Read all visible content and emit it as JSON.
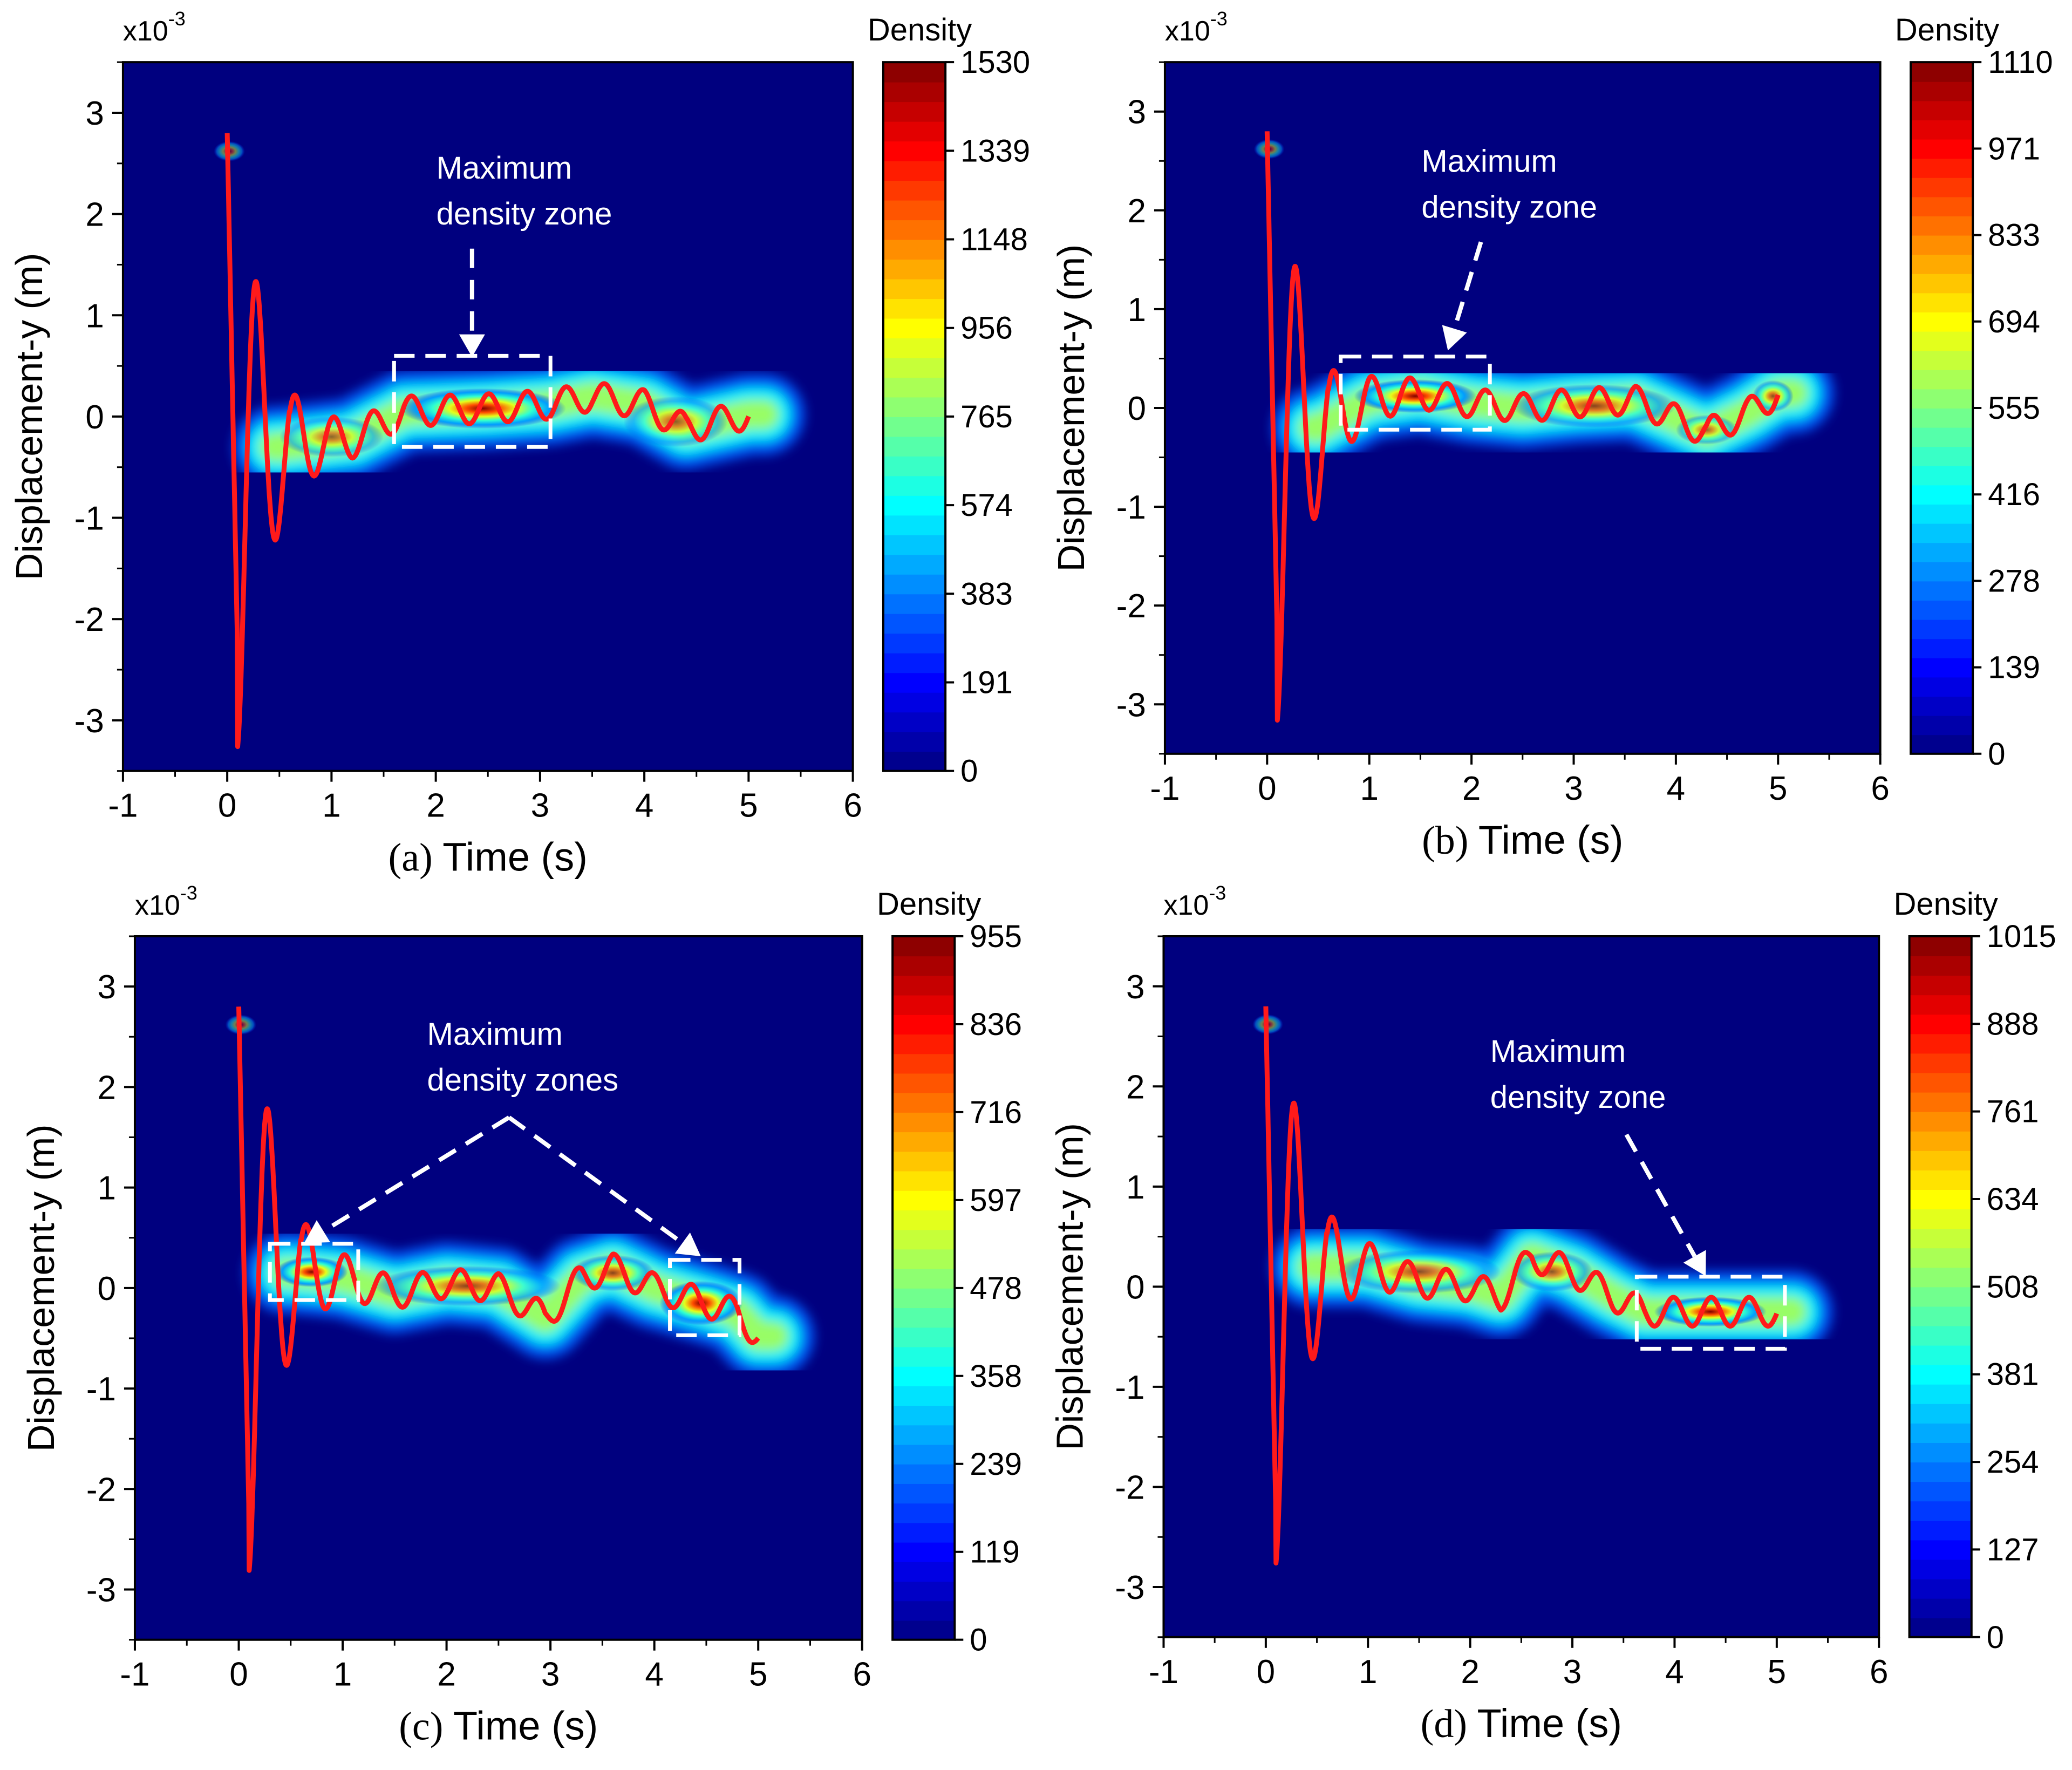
{
  "chart_data": [
    {
      "type": "heatmap",
      "panel_label": "(a)",
      "xlabel": "Time (s)",
      "ylabel": "Displacement-y (m)",
      "y_multiplier": "x10",
      "y_multiplier_exponent": "-3",
      "xlim": [
        -1,
        6
      ],
      "ylim": [
        -3.5,
        3.5
      ],
      "xticks": [
        "-1",
        "0",
        "1",
        "2",
        "3",
        "4",
        "5",
        "6"
      ],
      "yticks": [
        "-3",
        "-2",
        "-1",
        "0",
        "1",
        "2",
        "3"
      ],
      "colorbar": {
        "title": "Density",
        "min": 0,
        "max": 1530,
        "ticks": [
          "0",
          "191",
          "383",
          "574",
          "765",
          "956",
          "1148",
          "1339",
          "1530"
        ]
      },
      "annotation": [
        "Maximum",
        "density zone"
      ],
      "zones": [
        {
          "t_start": 1.6,
          "t_end": 3.1,
          "y_low": -0.3,
          "y_high": 0.6
        }
      ],
      "series": [
        {
          "name": "displacement",
          "color": "#ff1a1a",
          "drift": [
            [
              0.5,
              -0.3
            ],
            [
              1.2,
              -0.22
            ],
            [
              1.7,
              0.05
            ],
            [
              2.5,
              0.08
            ],
            [
              3.1,
              0.12
            ],
            [
              3.5,
              0.2
            ],
            [
              4.0,
              0.12
            ],
            [
              4.4,
              -0.12
            ],
            [
              4.7,
              -0.05
            ],
            [
              5.0,
              0.02
            ]
          ],
          "end_t": 5.0
        }
      ],
      "density_blobs": [
        {
          "t": 2.45,
          "y": 0.08,
          "st": 0.8,
          "sy": 0.2,
          "w": 1.0
        },
        {
          "t": 4.3,
          "y": -0.05,
          "st": 0.5,
          "sy": 0.25,
          "w": 0.4
        },
        {
          "t": 1.0,
          "y": -0.2,
          "st": 0.5,
          "sy": 0.2,
          "w": 0.35
        },
        {
          "t": 0.02,
          "y": 2.62,
          "st": 0.15,
          "sy": 0.1,
          "w": 0.22
        }
      ]
    },
    {
      "type": "heatmap",
      "panel_label": "(b)",
      "xlabel": "Time (s)",
      "ylabel": "Displacement-y (m)",
      "y_multiplier": "x10",
      "y_multiplier_exponent": "-3",
      "xlim": [
        -1,
        6
      ],
      "ylim": [
        -3.5,
        3.5
      ],
      "xticks": [
        "-1",
        "0",
        "1",
        "2",
        "3",
        "4",
        "5",
        "6"
      ],
      "yticks": [
        "-3",
        "-2",
        "-1",
        "0",
        "1",
        "2",
        "3"
      ],
      "colorbar": {
        "title": "Density",
        "min": 0,
        "max": 1110,
        "ticks": [
          "0",
          "139",
          "278",
          "416",
          "555",
          "694",
          "833",
          "971",
          "1110"
        ]
      },
      "annotation": [
        "Maximum",
        "density zone"
      ],
      "zones": [
        {
          "t_start": 0.72,
          "t_end": 2.18,
          "y_low": -0.22,
          "y_high": 0.52
        }
      ],
      "series": [
        {
          "name": "displacement",
          "color": "#ff1a1a",
          "drift": [
            [
              0.5,
              -0.2
            ],
            [
              1.0,
              0.08
            ],
            [
              1.5,
              0.15
            ],
            [
              2.0,
              0.05
            ],
            [
              2.5,
              0.0
            ],
            [
              3.0,
              0.05
            ],
            [
              3.6,
              0.08
            ],
            [
              4.3,
              -0.25
            ],
            [
              4.7,
              -0.05
            ],
            [
              5.0,
              0.15
            ]
          ],
          "end_t": 5.0
        }
      ],
      "density_blobs": [
        {
          "t": 1.45,
          "y": 0.12,
          "st": 0.6,
          "sy": 0.17,
          "w": 1.0
        },
        {
          "t": 3.2,
          "y": 0.02,
          "st": 0.8,
          "sy": 0.22,
          "w": 0.55
        },
        {
          "t": 4.95,
          "y": 0.12,
          "st": 0.2,
          "sy": 0.16,
          "w": 0.5
        },
        {
          "t": 4.3,
          "y": -0.22,
          "st": 0.3,
          "sy": 0.15,
          "w": 0.35
        },
        {
          "t": 0.02,
          "y": 2.62,
          "st": 0.15,
          "sy": 0.1,
          "w": 0.22
        }
      ]
    },
    {
      "type": "heatmap",
      "panel_label": "(c)",
      "xlabel": "Time (s)",
      "ylabel": "Displacement-y (m)",
      "y_multiplier": "x10",
      "y_multiplier_exponent": "-3",
      "xlim": [
        -1,
        6
      ],
      "ylim": [
        -3.5,
        3.5
      ],
      "xticks": [
        "-1",
        "0",
        "1",
        "2",
        "3",
        "4",
        "5",
        "6"
      ],
      "yticks": [
        "-3",
        "-2",
        "-1",
        "0",
        "1",
        "2",
        "3"
      ],
      "colorbar": {
        "title": "Density",
        "min": 0,
        "max": 955,
        "ticks": [
          "0",
          "119",
          "239",
          "358",
          "478",
          "597",
          "716",
          "836",
          "955"
        ]
      },
      "annotation": [
        "Maximum",
        "density zones"
      ],
      "zones": [
        {
          "t_start": 0.3,
          "t_end": 1.15,
          "y_low": -0.12,
          "y_high": 0.44
        },
        {
          "t_start": 4.15,
          "t_end": 4.82,
          "y_low": -0.47,
          "y_high": 0.28
        }
      ],
      "series": [
        {
          "name": "displacement",
          "color": "#ff1a1a",
          "drift": [
            [
              0.5,
              0.15
            ],
            [
              1.0,
              0.1
            ],
            [
              1.5,
              -0.05
            ],
            [
              2.0,
              0.05
            ],
            [
              2.5,
              0.0
            ],
            [
              2.95,
              -0.3
            ],
            [
              3.3,
              0.1
            ],
            [
              3.6,
              0.2
            ],
            [
              4.0,
              0.0
            ],
            [
              4.5,
              -0.15
            ],
            [
              4.8,
              -0.25
            ],
            [
              5.0,
              -0.48
            ]
          ],
          "end_t": 5.0
        }
      ],
      "density_blobs": [
        {
          "t": 0.7,
          "y": 0.16,
          "st": 0.35,
          "sy": 0.15,
          "w": 0.9
        },
        {
          "t": 4.45,
          "y": -0.15,
          "st": 0.4,
          "sy": 0.22,
          "w": 0.95
        },
        {
          "t": 2.2,
          "y": 0.02,
          "st": 0.9,
          "sy": 0.2,
          "w": 0.55
        },
        {
          "t": 3.6,
          "y": 0.15,
          "st": 0.4,
          "sy": 0.18,
          "w": 0.55
        },
        {
          "t": 0.02,
          "y": 2.62,
          "st": 0.15,
          "sy": 0.1,
          "w": 0.22
        }
      ]
    },
    {
      "type": "heatmap",
      "panel_label": "(d)",
      "xlabel": "Time (s)",
      "ylabel": "Displacement-y (m)",
      "y_multiplier": "x10",
      "y_multiplier_exponent": "-3",
      "xlim": [
        -1,
        6
      ],
      "ylim": [
        -3.5,
        3.5
      ],
      "xticks": [
        "-1",
        "0",
        "1",
        "2",
        "3",
        "4",
        "5",
        "6"
      ],
      "yticks": [
        "-3",
        "-2",
        "-1",
        "0",
        "1",
        "2",
        "3"
      ],
      "colorbar": {
        "title": "Density",
        "min": 0,
        "max": 1015,
        "ticks": [
          "0",
          "127",
          "254",
          "381",
          "508",
          "634",
          "761",
          "888",
          "1015"
        ]
      },
      "annotation": [
        "Maximum",
        "density zone"
      ],
      "zones": [
        {
          "t_start": 3.63,
          "t_end": 5.08,
          "y_low": -0.62,
          "y_high": 0.1
        }
      ],
      "series": [
        {
          "name": "displacement",
          "color": "#ff1a1a",
          "drift": [
            [
              0.5,
              0.2
            ],
            [
              1.0,
              0.2
            ],
            [
              1.5,
              0.05
            ],
            [
              2.0,
              0.0
            ],
            [
              2.3,
              -0.1
            ],
            [
              2.6,
              0.3
            ],
            [
              3.0,
              0.15
            ],
            [
              3.4,
              -0.1
            ],
            [
              3.7,
              -0.25
            ],
            [
              4.5,
              -0.25
            ],
            [
              5.0,
              -0.25
            ]
          ],
          "end_t": 5.0
        }
      ],
      "density_blobs": [
        {
          "t": 4.35,
          "y": -0.25,
          "st": 0.55,
          "sy": 0.15,
          "w": 1.0
        },
        {
          "t": 1.5,
          "y": 0.15,
          "st": 0.8,
          "sy": 0.22,
          "w": 0.5
        },
        {
          "t": 2.8,
          "y": 0.15,
          "st": 0.4,
          "sy": 0.2,
          "w": 0.45
        },
        {
          "t": 0.02,
          "y": 2.62,
          "st": 0.15,
          "sy": 0.1,
          "w": 0.22
        }
      ]
    }
  ]
}
